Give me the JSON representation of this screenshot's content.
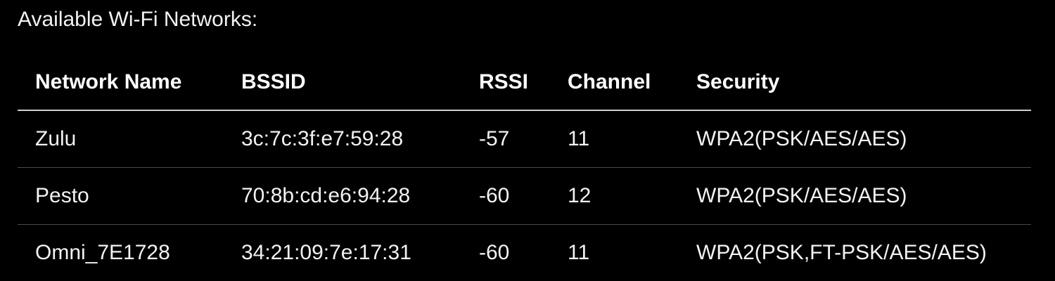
{
  "heading": "Available Wi-Fi Networks:",
  "table": {
    "columns": [
      "Network Name",
      "BSSID",
      "RSSI",
      "Channel",
      "Security"
    ],
    "rows": [
      [
        "Zulu",
        "3c:7c:3f:e7:59:28",
        "-57",
        "11",
        "WPA2(PSK/AES/AES)"
      ],
      [
        "Pesto",
        "70:8b:cd:e6:94:28",
        "-60",
        "12",
        "WPA2(PSK/AES/AES)"
      ],
      [
        "Omni_7E1728",
        "34:21:09:7e:17:31",
        "-60",
        "11",
        "WPA2(PSK,FT-PSK/AES/AES)"
      ]
    ]
  },
  "colors": {
    "background": "#000000",
    "text": "#f2f2f2",
    "header_rule": "#cfcfcf",
    "row_rule": "#4a4a4a"
  }
}
